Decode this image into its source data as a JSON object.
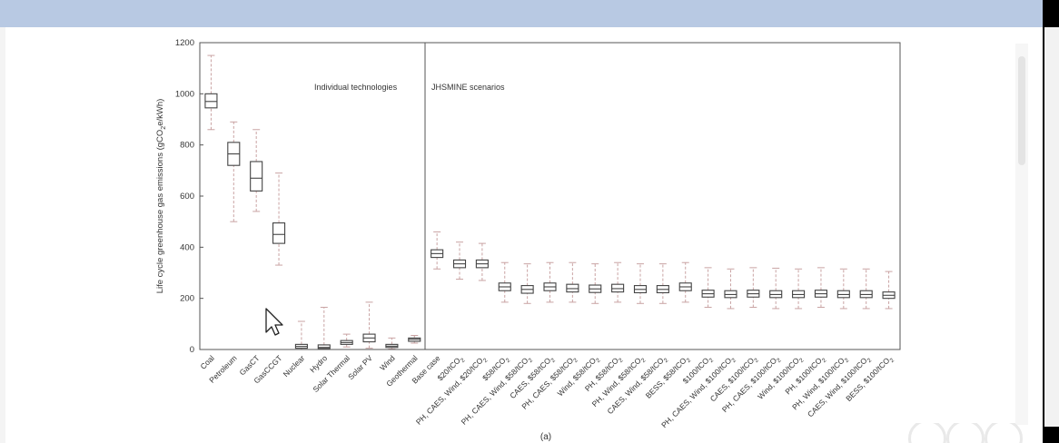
{
  "chart_data": {
    "type": "box",
    "ylabel_text": "Life cycle greenhouse gas emissions (gCO",
    "ylabel_sub": "2",
    "ylabel_tail": "e/kWh)",
    "ylim": [
      0,
      1200
    ],
    "yticks": [
      "0",
      "200",
      "400",
      "600",
      "800",
      "1000",
      "1200"
    ],
    "panel_labels": [
      "Individual technologies",
      "JHSMINE scenarios"
    ],
    "caption": "(a)",
    "categories": [
      {
        "label": "Coal",
        "stats": [
          860,
          945,
          970,
          1000,
          1150
        ]
      },
      {
        "label": "Petroleum",
        "stats": [
          500,
          720,
          765,
          810,
          890
        ]
      },
      {
        "label": "GasCT",
        "stats": [
          540,
          620,
          670,
          735,
          860
        ]
      },
      {
        "label": "GasCCGT",
        "stats": [
          330,
          415,
          450,
          495,
          690
        ]
      },
      {
        "label": "Nuclear",
        "stats": [
          0,
          5,
          12,
          20,
          110
        ]
      },
      {
        "label": "Hydro",
        "stats": [
          0,
          4,
          8,
          18,
          165
        ]
      },
      {
        "label": "Solar Thermal",
        "stats": [
          10,
          20,
          27,
          35,
          60
        ]
      },
      {
        "label": "Solar PV",
        "stats": [
          5,
          30,
          45,
          60,
          185
        ]
      },
      {
        "label": "Wind",
        "stats": [
          2,
          8,
          13,
          20,
          45
        ]
      },
      {
        "label": "Geothermal",
        "stats": [
          25,
          32,
          40,
          45,
          55
        ]
      },
      {
        "label": "Base case",
        "stats": [
          315,
          360,
          375,
          390,
          460
        ]
      },
      {
        "label": "$20/tCO",
        "sub": "2",
        "stats": [
          275,
          320,
          335,
          350,
          420
        ]
      },
      {
        "label": "PH, CAES, Wind, $20/tCO",
        "sub": "2",
        "stats": [
          270,
          320,
          335,
          350,
          415
        ]
      },
      {
        "label": "$58/tCO",
        "sub": "2",
        "stats": [
          185,
          230,
          245,
          260,
          340
        ]
      },
      {
        "label": "PH, CAES, Wind, $58/tCO",
        "sub": "2",
        "stats": [
          180,
          220,
          235,
          250,
          335
        ]
      },
      {
        "label": "CAES, $58/tCO",
        "sub": "2",
        "stats": [
          185,
          230,
          245,
          260,
          340
        ]
      },
      {
        "label": "PH, CAES, $58/tCO",
        "sub": "2",
        "stats": [
          185,
          225,
          238,
          255,
          340
        ]
      },
      {
        "label": "Wind, $58/tCO",
        "sub": "2",
        "stats": [
          180,
          223,
          237,
          252,
          335
        ]
      },
      {
        "label": "PH, $58/tCO",
        "sub": "2",
        "stats": [
          185,
          225,
          238,
          255,
          340
        ]
      },
      {
        "label": "PH, Wind, $58/tCO",
        "sub": "2",
        "stats": [
          180,
          222,
          235,
          250,
          335
        ]
      },
      {
        "label": "CAES, Wind, $58/tCO",
        "sub": "2",
        "stats": [
          180,
          222,
          235,
          250,
          335
        ]
      },
      {
        "label": "BESS, $58/tCO",
        "sub": "2",
        "stats": [
          185,
          230,
          245,
          260,
          340
        ]
      },
      {
        "label": "$100/tCO",
        "sub": "2",
        "stats": [
          165,
          205,
          218,
          232,
          320
        ]
      },
      {
        "label": "PH, CAES, Wind, $100/tCO",
        "sub": "2",
        "stats": [
          160,
          203,
          215,
          230,
          315
        ]
      },
      {
        "label": "CAES, $100/tCO",
        "sub": "2",
        "stats": [
          165,
          205,
          218,
          232,
          320
        ]
      },
      {
        "label": "PH, CAES, $100/tCO",
        "sub": "2",
        "stats": [
          160,
          203,
          215,
          230,
          318
        ]
      },
      {
        "label": "Wind, $100/tCO",
        "sub": "2",
        "stats": [
          160,
          203,
          215,
          230,
          315
        ]
      },
      {
        "label": "PH, $100/tCO",
        "sub": "2",
        "stats": [
          165,
          205,
          218,
          232,
          320
        ]
      },
      {
        "label": "PH, Wind, $100/tCO",
        "sub": "2",
        "stats": [
          160,
          203,
          215,
          230,
          315
        ]
      },
      {
        "label": "CAES, Wind, $100/tCO",
        "sub": "2",
        "stats": [
          160,
          203,
          215,
          230,
          315
        ]
      },
      {
        "label": "BESS, $100/tCO",
        "sub": "2",
        "stats": [
          160,
          200,
          212,
          225,
          305
        ]
      }
    ],
    "grid": false,
    "legend": "none"
  },
  "colors": {
    "box": "#444444",
    "whisker": "#c9a3a3",
    "axis": "#555555",
    "text": "#333333"
  },
  "ui": {
    "cursor_icon": "mouse-pointer-icon",
    "watermark_icon": "zoom-logo-icon"
  }
}
